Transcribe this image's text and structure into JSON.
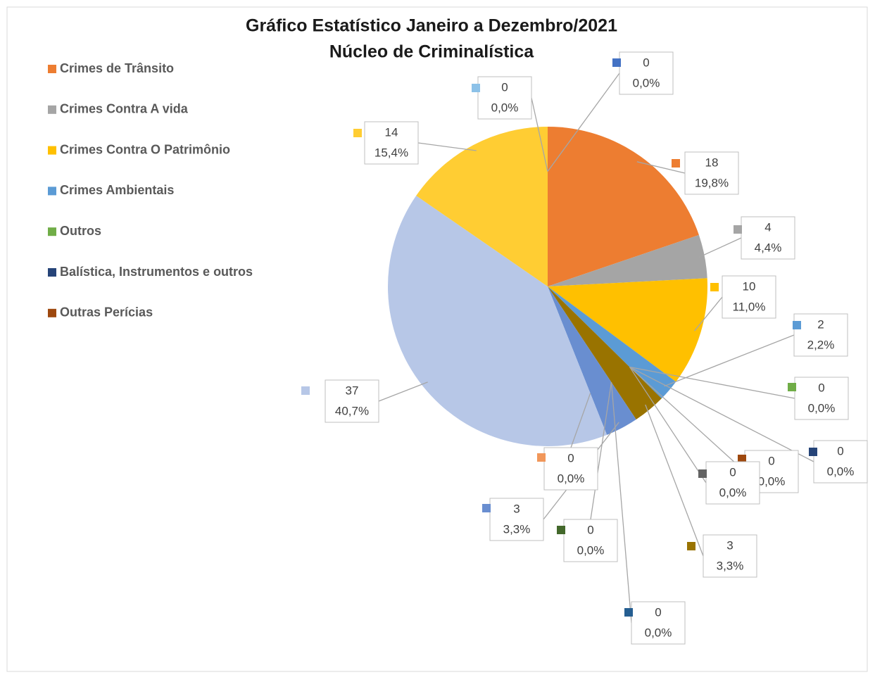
{
  "chart_data": {
    "type": "pie",
    "title": "Gráfico  Estatístico Janeiro a Dezembro/2021",
    "subtitle": "Núcleo de Criminalística",
    "categories": [
      "Crimes de Trânsito",
      "Crimes Contra A vida",
      "Crimes Contra O Patrimônio",
      "Crimes Ambientais",
      "Outros",
      "Balística, Instrumentos e outros",
      "Outras Perícias",
      null,
      null,
      null,
      null,
      null,
      null,
      null,
      null,
      null,
      null
    ],
    "values": [
      18,
      4,
      10,
      2,
      0,
      0,
      0,
      0,
      3,
      0,
      0,
      3,
      0,
      37,
      14,
      0,
      0
    ],
    "percent_labels": [
      "19,8%",
      "4,4%",
      "11,0%",
      "2,2%",
      "0,0%",
      "0,0%",
      "0,0%",
      "0,0%",
      "3,3%",
      "0,0%",
      "0,0%",
      "3,3%",
      "0,0%",
      "40,7%",
      "15,4%",
      "0,0%",
      "0,0%"
    ],
    "colors": [
      "#ed7d31",
      "#a5a5a5",
      "#ffc000",
      "#5b9bd5",
      "#70ad47",
      "#264478",
      "#9e480e",
      "#636363",
      "#997300",
      "#255e91",
      "#43682b",
      "#698ed0",
      "#f1975a",
      "#b7c7e7",
      "#ffcd33",
      "#8cc1e8",
      "#4472c4"
    ],
    "legend": "left"
  }
}
